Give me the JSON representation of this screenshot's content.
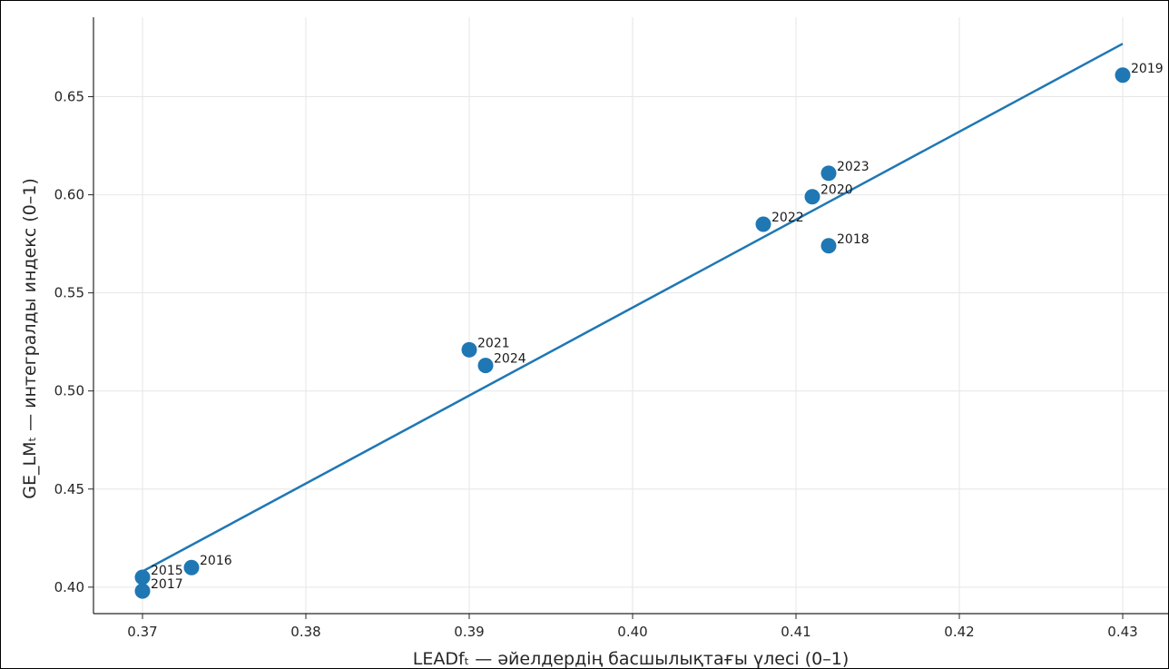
{
  "chart_data": {
    "type": "scatter",
    "title": "",
    "xlabel": "LEADfₜ — әйелдердің басшылықтағы үлесі (0–1)",
    "ylabel": "GE_LMₜ — интегралды индекс (0–1)",
    "xlim": [
      0.367,
      0.433
    ],
    "ylim": [
      0.3865,
      0.6905
    ],
    "x_ticks": [
      "0.37",
      "0.38",
      "0.39",
      "0.40",
      "0.41",
      "0.42",
      "0.43"
    ],
    "y_ticks": [
      "0.40",
      "0.45",
      "0.50",
      "0.55",
      "0.60",
      "0.65"
    ],
    "grid": true,
    "series": [
      {
        "points": [
          {
            "label": "2015",
            "x": 0.37,
            "y": 0.405
          },
          {
            "label": "2016",
            "x": 0.373,
            "y": 0.41
          },
          {
            "label": "2017",
            "x": 0.37,
            "y": 0.398
          },
          {
            "label": "2018",
            "x": 0.412,
            "y": 0.574
          },
          {
            "label": "2019",
            "x": 0.43,
            "y": 0.661
          },
          {
            "label": "2020",
            "x": 0.411,
            "y": 0.599
          },
          {
            "label": "2021",
            "x": 0.39,
            "y": 0.521
          },
          {
            "label": "2022",
            "x": 0.408,
            "y": 0.585
          },
          {
            "label": "2023",
            "x": 0.412,
            "y": 0.611
          },
          {
            "label": "2024",
            "x": 0.391,
            "y": 0.513
          }
        ]
      }
    ],
    "trend_line": {
      "x": [
        0.37,
        0.43
      ],
      "y": [
        0.408,
        0.677
      ]
    },
    "colors": {
      "points": "#1f77b4",
      "line": "#1f77b4",
      "grid": "#e6e6e6",
      "axis": "#262626"
    }
  }
}
